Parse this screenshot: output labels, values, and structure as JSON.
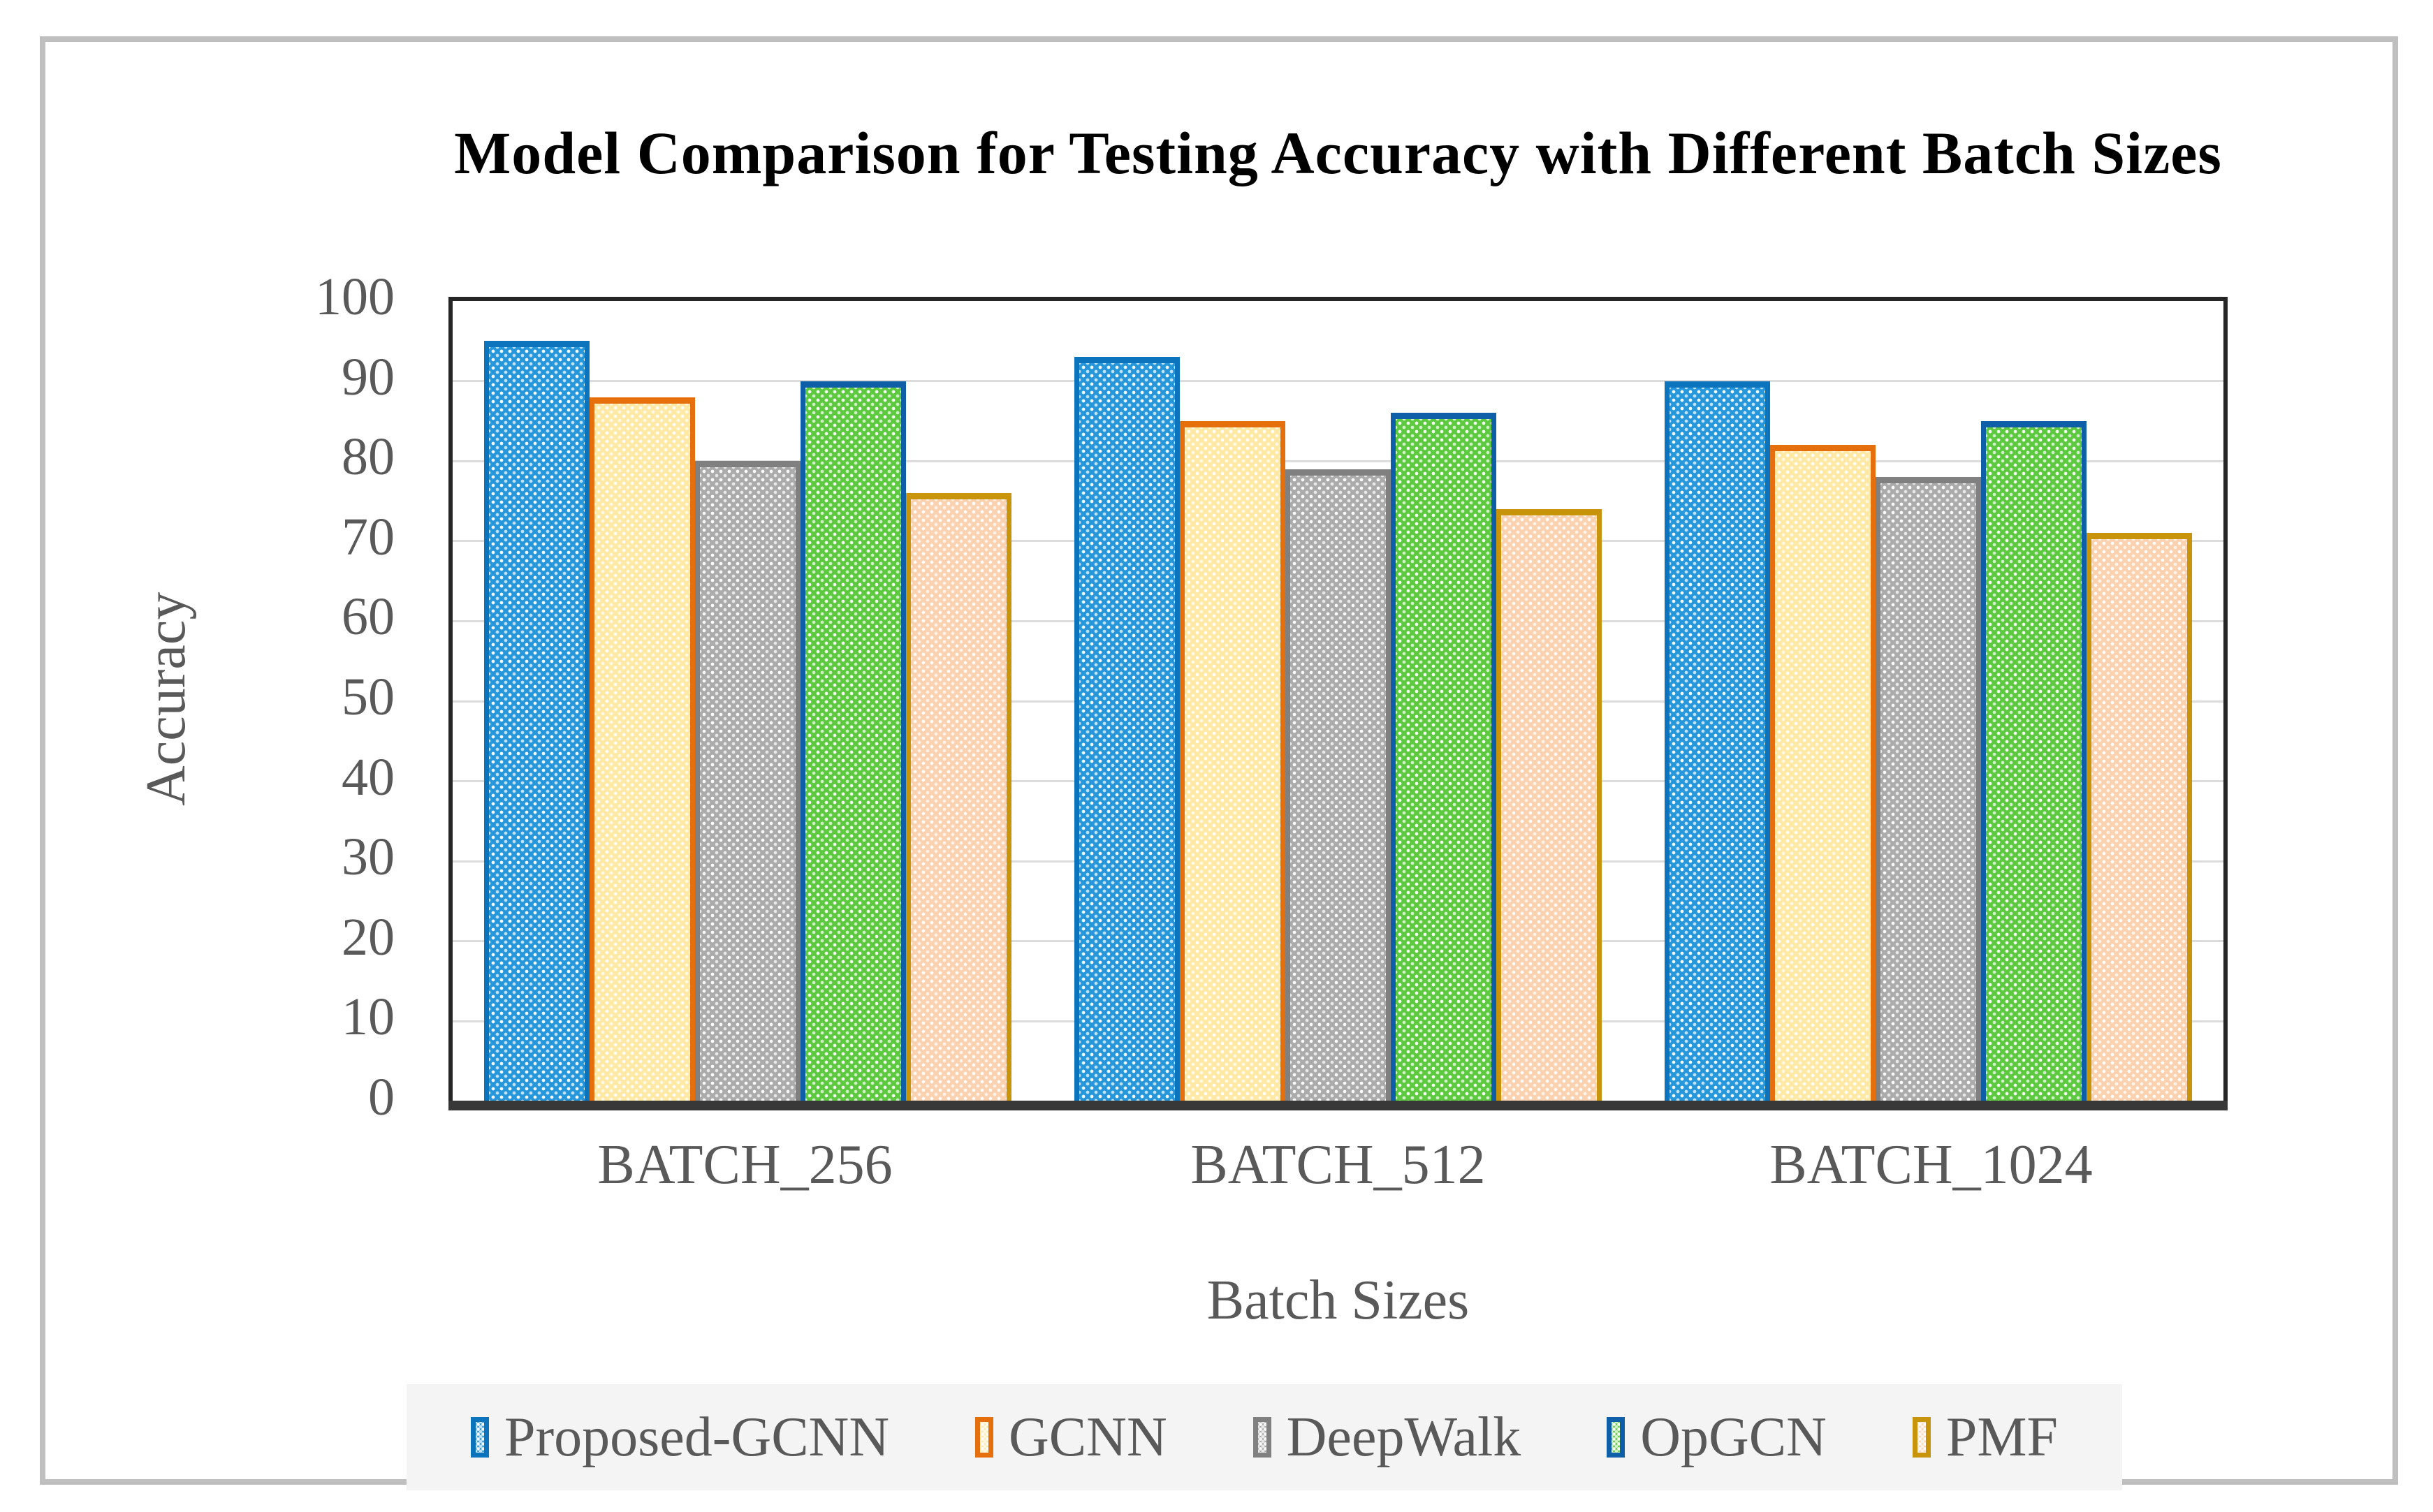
{
  "chart_data": {
    "type": "bar",
    "title": "Model Comparison for Testing Accuracy with Different Batch Sizes",
    "xlabel": "Batch Sizes",
    "ylabel": "Accuracy",
    "ylim": [
      0,
      100
    ],
    "ytick_step": 10,
    "grid": true,
    "legend_position": "bottom",
    "categories": [
      "BATCH_256",
      "BATCH_512",
      "BATCH_1024"
    ],
    "series": [
      {
        "name": "Proposed-GCNN",
        "fill": "#2697DA",
        "border": "#0C74BC",
        "values": [
          95,
          93,
          90
        ]
      },
      {
        "name": "GCNN",
        "fill": "#FFE9A5",
        "border": "#E56F0C",
        "values": [
          88,
          85,
          82
        ]
      },
      {
        "name": "DeepWalk",
        "fill": "#ABABAB",
        "border": "#808080",
        "values": [
          80,
          79,
          78
        ]
      },
      {
        "name": "OpGCN",
        "fill": "#5CC93F",
        "border": "#0F5EA8",
        "values": [
          90,
          86,
          85
        ]
      },
      {
        "name": "PMF",
        "fill": "#FBD2B0",
        "border": "#C8940B",
        "values": [
          76,
          74,
          71
        ]
      }
    ],
    "colors": {
      "figure_border": "#BFBFBF",
      "plot_border": "#262626",
      "grid": "#DCDCDC",
      "axis_text": "#595959",
      "axis_line": "#383838",
      "legend_bg": "#F4F4F4",
      "title": "#000000"
    }
  }
}
